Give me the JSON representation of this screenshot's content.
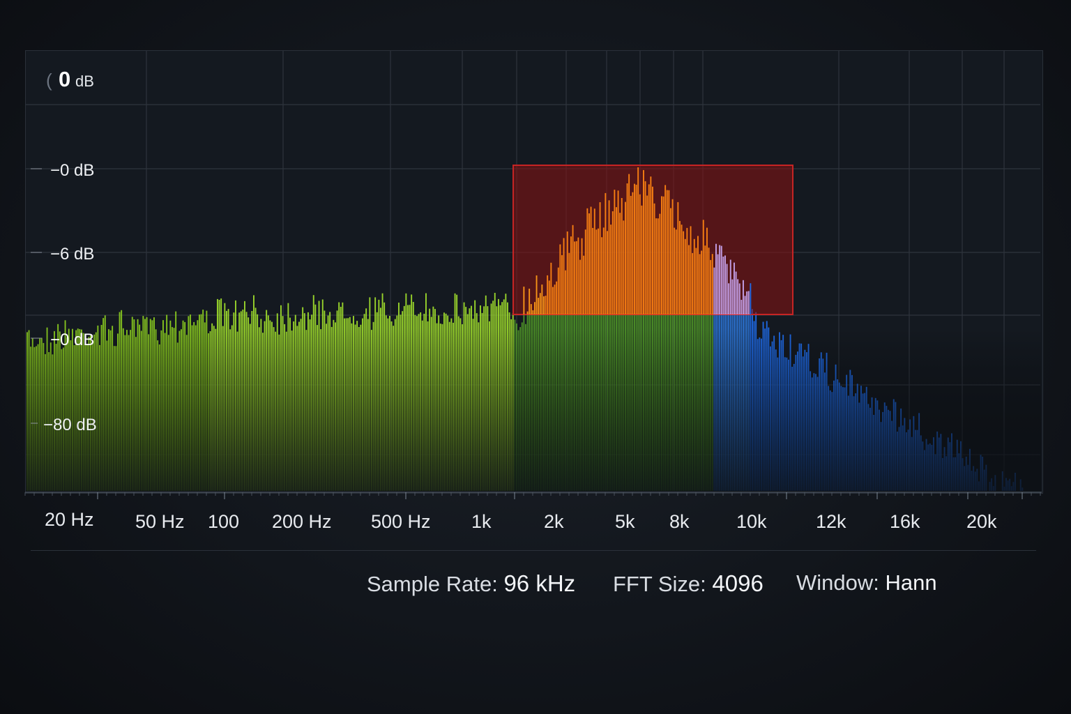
{
  "db_labels": [
    {
      "text_main": "0",
      "text_unit": "dB",
      "prefix": "("
    },
    {
      "text": "−0 dB"
    },
    {
      "text": "−6 dB"
    },
    {
      "text": "−0 dB"
    },
    {
      "text": "−80 dB"
    }
  ],
  "freq_labels": [
    "20 Hz",
    "50 Hz",
    "100",
    "200 Hz",
    "500 Hz",
    "1k",
    "2k",
    "5k",
    "8k",
    "10k",
    "12k",
    "16k",
    "20k"
  ],
  "info": {
    "sample_rate_label": "Sample Rate:",
    "sample_rate_value": "96 kHz",
    "fft_label": "FFT Size:",
    "fft_value": "4096",
    "window_label": "Window:",
    "window_value": "Hann"
  },
  "colors": {
    "low_band": "#9be22a",
    "mid_band": "#ff8c1a",
    "high_band": "#1e6ff0",
    "highlight": "#8a1313",
    "grid": "#2d333c"
  },
  "highlight_region": {
    "from": "1.5k",
    "to": "12k"
  }
}
